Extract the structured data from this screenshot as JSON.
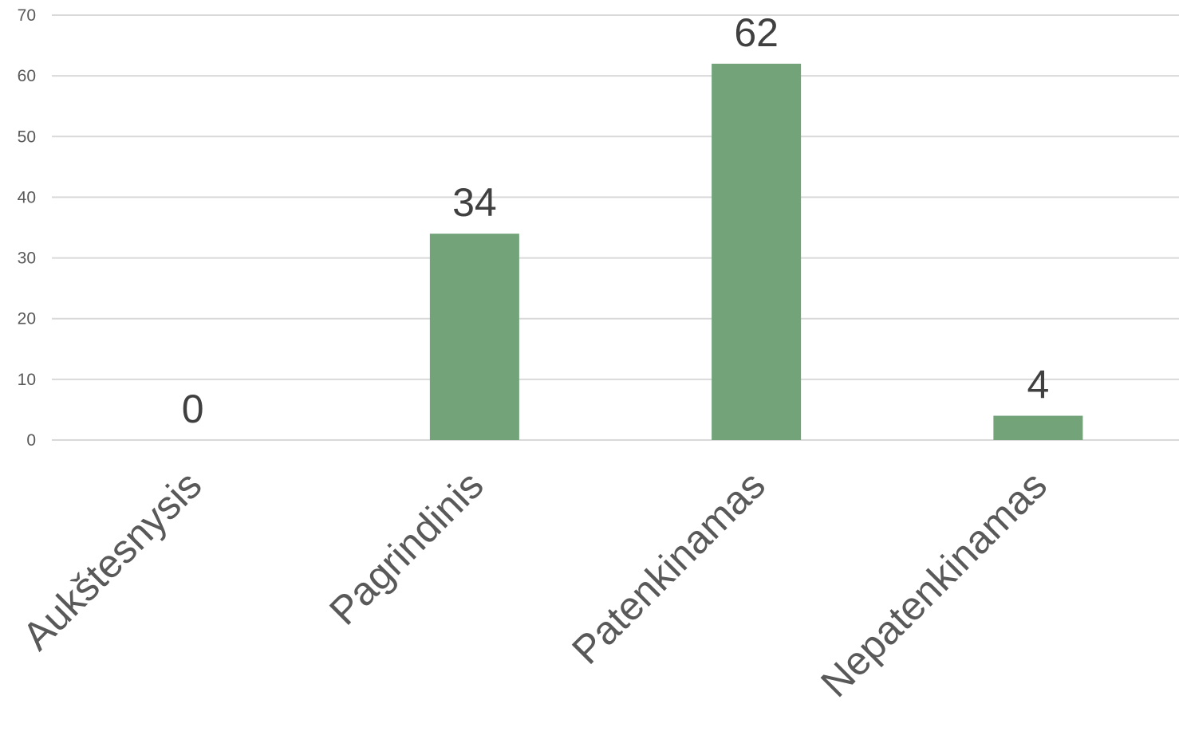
{
  "chart_data": {
    "type": "bar",
    "categories": [
      "Aukštesnysis",
      "Pagrindinis",
      "Patenkinamas",
      "Nepatenkinamas"
    ],
    "values": [
      0,
      34,
      62,
      4
    ],
    "yticks": [
      "0",
      "10",
      "20",
      "30",
      "40",
      "50",
      "60",
      "70"
    ],
    "data_labels": [
      "0",
      "34",
      "62",
      "4"
    ],
    "ylim": [
      0,
      70
    ],
    "grid": true,
    "bar_color": "#72a379",
    "title": "",
    "xlabel": "",
    "ylabel": ""
  }
}
